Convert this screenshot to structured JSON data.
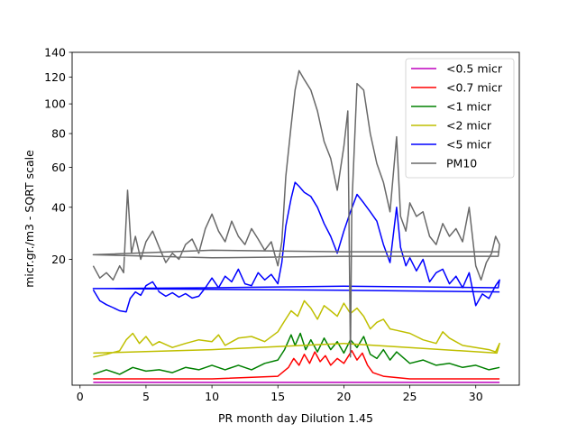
{
  "chart_data": {
    "type": "line",
    "xlabel": "PR month day  Dilution 1.45",
    "ylabel": "micr.gr./m3 - SQRT scale",
    "y_scale": "sqrt",
    "xlim": [
      -0.6,
      33.3
    ],
    "ylim": [
      0,
      140
    ],
    "x_ticks": [
      0,
      5,
      10,
      15,
      20,
      25,
      30
    ],
    "y_ticks": [
      20,
      40,
      60,
      80,
      100,
      120,
      140
    ],
    "legend_position": "top-right",
    "series": [
      {
        "name": "<0.5 micr",
        "color": "#bf00bf",
        "points": [
          [
            1,
            0.01
          ],
          [
            5,
            0.01
          ],
          [
            10,
            0.01
          ],
          [
            15,
            0.01
          ],
          [
            20,
            0.01
          ],
          [
            25,
            0.01
          ],
          [
            31.8,
            0.01
          ]
        ]
      },
      {
        "name": "<0.7 micr",
        "color": "#ff0000",
        "points": [
          [
            1,
            0.05
          ],
          [
            10,
            0.05
          ],
          [
            15,
            0.1
          ],
          [
            15.8,
            0.4
          ],
          [
            16.2,
            0.9
          ],
          [
            16.6,
            0.5
          ],
          [
            17,
            1.2
          ],
          [
            17.4,
            0.6
          ],
          [
            17.8,
            1.4
          ],
          [
            18.2,
            0.7
          ],
          [
            18.6,
            1.1
          ],
          [
            19,
            0.5
          ],
          [
            19.5,
            0.9
          ],
          [
            20,
            0.6
          ],
          [
            20.6,
            1.5
          ],
          [
            21,
            0.8
          ],
          [
            21.4,
            1.3
          ],
          [
            21.8,
            0.5
          ],
          [
            22.2,
            0.2
          ],
          [
            23,
            0.1
          ],
          [
            25,
            0.05
          ],
          [
            31.8,
            0.05
          ]
        ]
      },
      {
        "name": "<1 micr",
        "color": "#008000",
        "points": [
          [
            1,
            0.15
          ],
          [
            2,
            0.3
          ],
          [
            3,
            0.15
          ],
          [
            4,
            0.4
          ],
          [
            5,
            0.25
          ],
          [
            6,
            0.3
          ],
          [
            7,
            0.2
          ],
          [
            8,
            0.4
          ],
          [
            9,
            0.3
          ],
          [
            10,
            0.5
          ],
          [
            11,
            0.3
          ],
          [
            12,
            0.5
          ],
          [
            13,
            0.3
          ],
          [
            14,
            0.6
          ],
          [
            15,
            0.8
          ],
          [
            15.5,
            1.6
          ],
          [
            16,
            3.2
          ],
          [
            16.3,
            2.0
          ],
          [
            16.7,
            3.4
          ],
          [
            17.1,
            1.6
          ],
          [
            17.5,
            2.6
          ],
          [
            18,
            1.4
          ],
          [
            18.5,
            2.8
          ],
          [
            19,
            1.6
          ],
          [
            19.5,
            2.4
          ],
          [
            20,
            1.3
          ],
          [
            20.5,
            2.6
          ],
          [
            21,
            1.8
          ],
          [
            21.5,
            3.0
          ],
          [
            22,
            1.2
          ],
          [
            22.5,
            0.9
          ],
          [
            23,
            1.6
          ],
          [
            23.5,
            0.8
          ],
          [
            24,
            1.4
          ],
          [
            25,
            0.6
          ],
          [
            26,
            0.8
          ],
          [
            27,
            0.5
          ],
          [
            28,
            0.6
          ],
          [
            29,
            0.4
          ],
          [
            30,
            0.5
          ],
          [
            31,
            0.3
          ],
          [
            31.8,
            0.4
          ]
        ]
      },
      {
        "name": "<2 micr",
        "color": "#bfbf00",
        "points": [
          [
            1,
            1.0
          ],
          [
            2,
            1.2
          ],
          [
            3,
            1.5
          ],
          [
            3.5,
            2.6
          ],
          [
            4,
            3.4
          ],
          [
            4.5,
            2.2
          ],
          [
            5,
            3.0
          ],
          [
            5.5,
            2.0
          ],
          [
            6,
            2.4
          ],
          [
            7,
            1.8
          ],
          [
            8,
            2.2
          ],
          [
            9,
            2.6
          ],
          [
            10,
            2.4
          ],
          [
            10.5,
            3.2
          ],
          [
            11,
            2.0
          ],
          [
            12,
            2.8
          ],
          [
            13,
            3.0
          ],
          [
            14,
            2.4
          ],
          [
            15,
            3.6
          ],
          [
            15.5,
            5.2
          ],
          [
            16,
            7.0
          ],
          [
            16.5,
            6.0
          ],
          [
            17,
            9.0
          ],
          [
            17.5,
            7.5
          ],
          [
            18,
            5.5
          ],
          [
            18.5,
            8.0
          ],
          [
            19,
            7.0
          ],
          [
            19.5,
            6.0
          ],
          [
            20,
            8.5
          ],
          [
            20.5,
            6.5
          ],
          [
            21,
            7.5
          ],
          [
            21.5,
            6.0
          ],
          [
            22,
            4.0
          ],
          [
            22.5,
            5.0
          ],
          [
            23,
            5.5
          ],
          [
            23.5,
            4.0
          ],
          [
            24,
            3.8
          ],
          [
            25,
            3.4
          ],
          [
            26,
            2.6
          ],
          [
            27,
            2.2
          ],
          [
            27.5,
            3.6
          ],
          [
            28,
            2.8
          ],
          [
            29,
            2.0
          ],
          [
            30,
            1.8
          ],
          [
            31,
            1.6
          ],
          [
            31.5,
            1.4
          ],
          [
            31.8,
            2.2
          ],
          [
            31.6,
            1.3
          ],
          [
            20,
            2.2
          ],
          [
            10,
            1.6
          ],
          [
            1,
            1.3
          ]
        ]
      },
      {
        "name": "<5 micr",
        "color": "#0000ff",
        "points": [
          [
            1,
            11.5
          ],
          [
            1.5,
            9.0
          ],
          [
            2,
            8.2
          ],
          [
            2.5,
            7.6
          ],
          [
            3,
            7.0
          ],
          [
            3.5,
            6.8
          ],
          [
            3.8,
            9.5
          ],
          [
            4.2,
            11.0
          ],
          [
            4.6,
            10.2
          ],
          [
            5,
            12.5
          ],
          [
            5.5,
            13.5
          ],
          [
            6,
            11.0
          ],
          [
            6.5,
            10.0
          ],
          [
            7,
            10.8
          ],
          [
            7.5,
            9.8
          ],
          [
            8,
            10.6
          ],
          [
            8.5,
            9.6
          ],
          [
            9,
            10.0
          ],
          [
            9.5,
            12.0
          ],
          [
            10,
            14.5
          ],
          [
            10.5,
            12.0
          ],
          [
            11,
            15.0
          ],
          [
            11.5,
            13.5
          ],
          [
            12,
            17.0
          ],
          [
            12.5,
            13.0
          ],
          [
            13,
            12.5
          ],
          [
            13.5,
            16.0
          ],
          [
            14,
            14.0
          ],
          [
            14.5,
            15.5
          ],
          [
            15,
            13.0
          ],
          [
            15.3,
            19.0
          ],
          [
            15.6,
            32.0
          ],
          [
            16,
            44.0
          ],
          [
            16.3,
            52.0
          ],
          [
            16.6,
            50.0
          ],
          [
            17,
            47.0
          ],
          [
            17.5,
            45.0
          ],
          [
            18,
            40.0
          ],
          [
            18.5,
            33.0
          ],
          [
            19,
            28.0
          ],
          [
            19.5,
            22.0
          ],
          [
            20,
            30.0
          ],
          [
            20.5,
            38.0
          ],
          [
            21,
            46.0
          ],
          [
            21.5,
            42.0
          ],
          [
            22,
            38.0
          ],
          [
            22.5,
            34.0
          ],
          [
            23,
            25.0
          ],
          [
            23.5,
            19.0
          ],
          [
            24,
            40.0
          ],
          [
            24.3,
            24.0
          ],
          [
            24.7,
            18.0
          ],
          [
            25,
            20.5
          ],
          [
            25.5,
            16.5
          ],
          [
            26,
            20.0
          ],
          [
            26.5,
            13.5
          ],
          [
            27,
            16.0
          ],
          [
            27.5,
            17.0
          ],
          [
            28,
            13.0
          ],
          [
            28.5,
            15.0
          ],
          [
            29,
            12.0
          ],
          [
            29.5,
            16.0
          ],
          [
            30,
            8.0
          ],
          [
            30.5,
            10.5
          ],
          [
            31,
            9.5
          ],
          [
            31.5,
            12.5
          ],
          [
            31.8,
            14.0
          ],
          [
            31.7,
            12.0
          ],
          [
            20,
            12.4
          ],
          [
            10,
            12.0
          ],
          [
            1,
            11.8
          ],
          [
            20,
            11.4
          ],
          [
            31.8,
            11.0
          ]
        ]
      },
      {
        "name": "PM10",
        "color": "#696969",
        "points": [
          [
            1,
            18.0
          ],
          [
            1.5,
            14.5
          ],
          [
            2,
            16.0
          ],
          [
            2.5,
            14.0
          ],
          [
            3,
            18.0
          ],
          [
            3.3,
            16.0
          ],
          [
            3.6,
            48.0
          ],
          [
            3.9,
            22.0
          ],
          [
            4.2,
            28.0
          ],
          [
            4.6,
            20.0
          ],
          [
            5,
            26.0
          ],
          [
            5.5,
            30.0
          ],
          [
            6,
            24.0
          ],
          [
            6.5,
            19.0
          ],
          [
            7,
            22.0
          ],
          [
            7.5,
            20.0
          ],
          [
            8,
            25.0
          ],
          [
            8.5,
            27.0
          ],
          [
            9,
            22.0
          ],
          [
            9.5,
            31.0
          ],
          [
            10,
            37.0
          ],
          [
            10.5,
            30.0
          ],
          [
            11,
            26.0
          ],
          [
            11.5,
            34.0
          ],
          [
            12,
            28.0
          ],
          [
            12.5,
            25.0
          ],
          [
            13,
            31.0
          ],
          [
            13.5,
            27.0
          ],
          [
            14,
            23.0
          ],
          [
            14.5,
            26.0
          ],
          [
            15,
            18.0
          ],
          [
            15.3,
            26.0
          ],
          [
            15.6,
            55.0
          ],
          [
            16,
            85.0
          ],
          [
            16.3,
            110.0
          ],
          [
            16.6,
            125.0
          ],
          [
            17,
            118.0
          ],
          [
            17.5,
            110.0
          ],
          [
            18,
            95.0
          ],
          [
            18.5,
            75.0
          ],
          [
            19,
            65.0
          ],
          [
            19.5,
            48.0
          ],
          [
            20,
            72.0
          ],
          [
            20.3,
            95.0
          ],
          [
            20.5,
            1.0
          ],
          [
            20.6,
            40.0
          ],
          [
            21,
            115.0
          ],
          [
            21.5,
            110.0
          ],
          [
            22,
            80.0
          ],
          [
            22.5,
            62.0
          ],
          [
            23,
            52.0
          ],
          [
            23.5,
            38.0
          ],
          [
            24,
            78.0
          ],
          [
            24.3,
            36.0
          ],
          [
            24.7,
            30.0
          ],
          [
            25,
            42.0
          ],
          [
            25.5,
            36.0
          ],
          [
            26,
            38.0
          ],
          [
            26.5,
            28.0
          ],
          [
            27,
            25.0
          ],
          [
            27.5,
            33.0
          ],
          [
            28,
            28.0
          ],
          [
            28.5,
            31.0
          ],
          [
            29,
            26.0
          ],
          [
            29.5,
            40.0
          ],
          [
            30,
            18.0
          ],
          [
            30.4,
            14.0
          ],
          [
            30.8,
            19.0
          ],
          [
            31.2,
            22.0
          ],
          [
            31.5,
            28.0
          ],
          [
            31.8,
            25.0
          ],
          [
            31.7,
            21.0
          ],
          [
            20,
            21.0
          ],
          [
            10,
            20.5
          ],
          [
            1,
            21.5
          ],
          [
            10,
            23.0
          ],
          [
            20,
            22.5
          ],
          [
            31.8,
            22.5
          ]
        ]
      }
    ]
  }
}
